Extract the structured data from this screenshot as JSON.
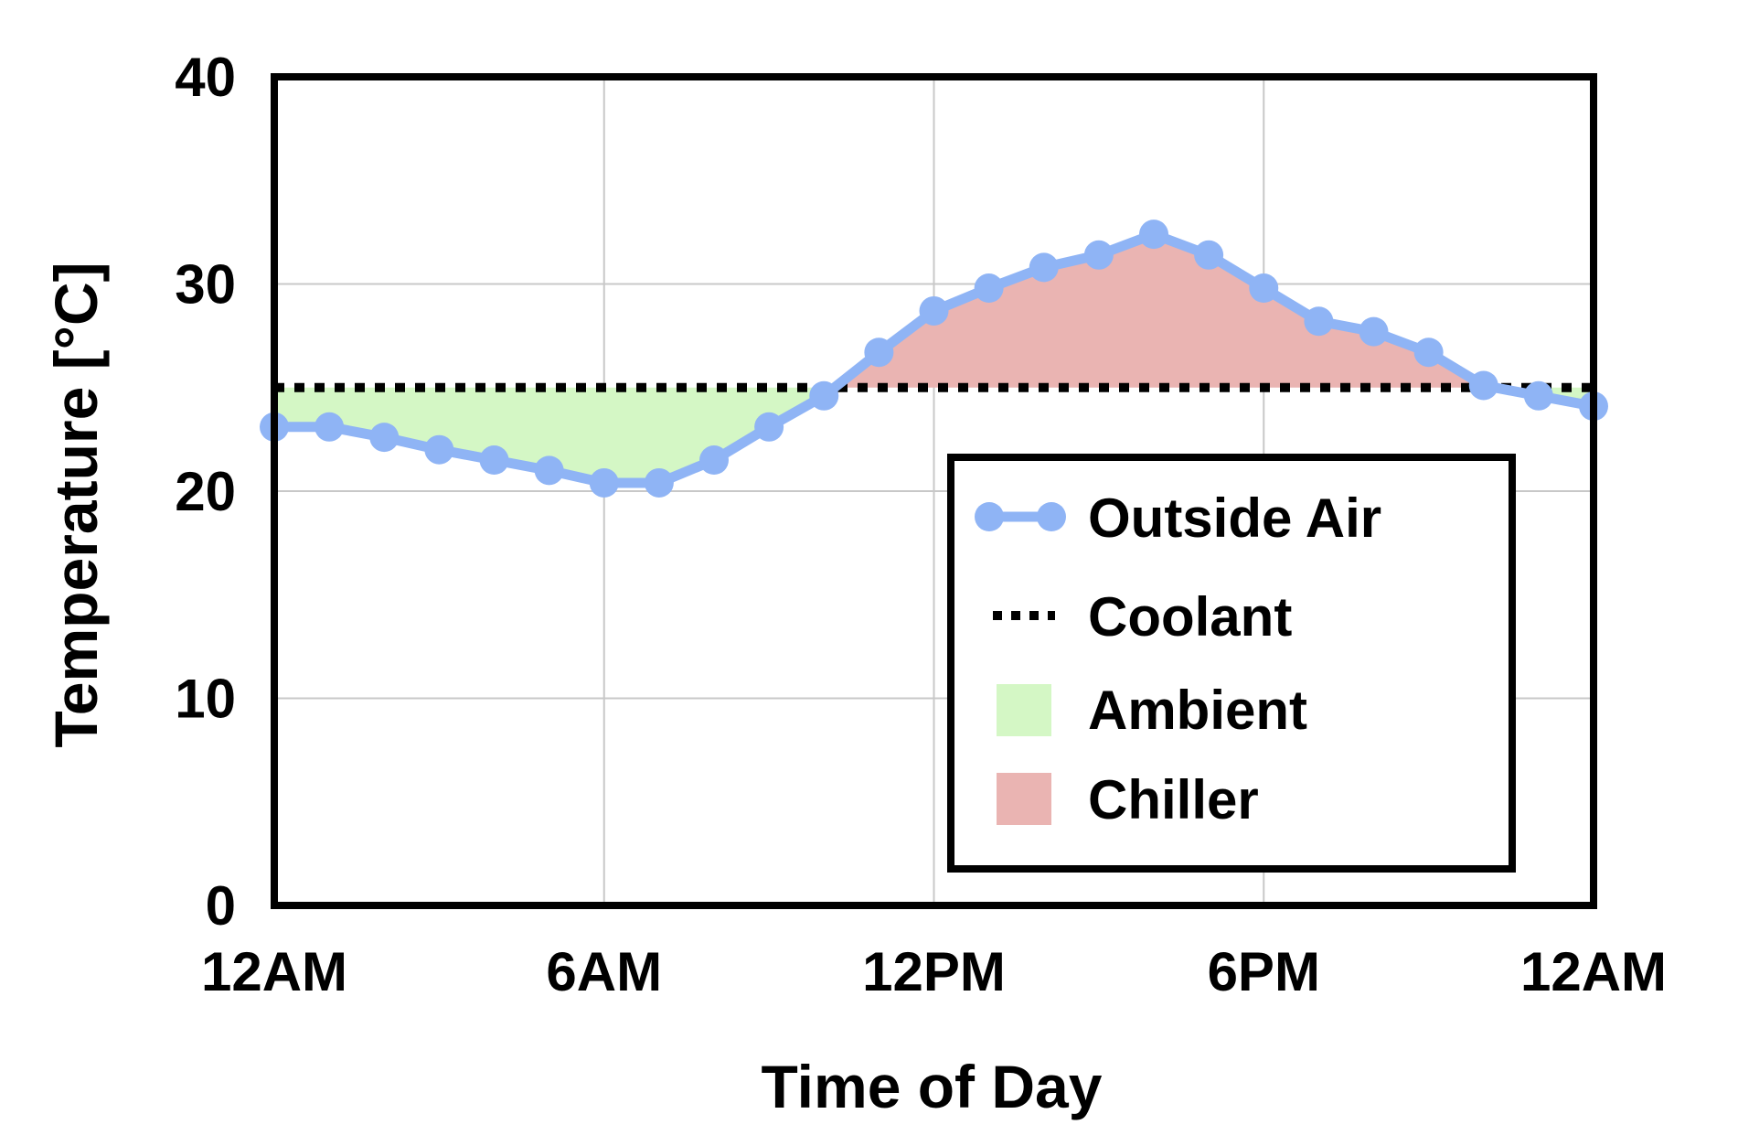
{
  "chart_data": {
    "type": "line",
    "title": "",
    "xlabel": "Time of Day",
    "ylabel": "Temperature [°C]",
    "ylim": [
      0,
      40
    ],
    "yticks": [
      0,
      10,
      20,
      30,
      40
    ],
    "xlim": [
      0,
      24
    ],
    "xticks": [
      {
        "value": 0,
        "label": "12AM"
      },
      {
        "value": 6,
        "label": "6AM"
      },
      {
        "value": 12,
        "label": "12PM"
      },
      {
        "value": 18,
        "label": "6PM"
      },
      {
        "value": 24,
        "label": "12AM"
      }
    ],
    "grid": true,
    "legend_position": "bottom-right",
    "series": [
      {
        "name": "Outside Air",
        "kind": "line-markers",
        "color": "#8fb4f5",
        "x": [
          0,
          1,
          2,
          3,
          4,
          5,
          6,
          7,
          8,
          9,
          10,
          11,
          12,
          13,
          14,
          15,
          16,
          17,
          18,
          19,
          20,
          21,
          22,
          23,
          24
        ],
        "y": [
          23.1,
          23.1,
          22.6,
          22.0,
          21.5,
          21.0,
          20.4,
          20.4,
          21.5,
          23.1,
          24.6,
          26.7,
          28.7,
          29.8,
          30.8,
          31.4,
          32.4,
          31.4,
          29.8,
          28.2,
          27.7,
          26.7,
          25.1,
          24.6,
          24.1
        ]
      },
      {
        "name": "Coolant",
        "kind": "dotted-line",
        "color": "#000000",
        "value": 25.0
      },
      {
        "name": "Ambient",
        "kind": "area-below-coolant",
        "color": "#d4f7c5"
      },
      {
        "name": "Chiller",
        "kind": "area-above-coolant",
        "color": "#eab4b2"
      }
    ]
  }
}
